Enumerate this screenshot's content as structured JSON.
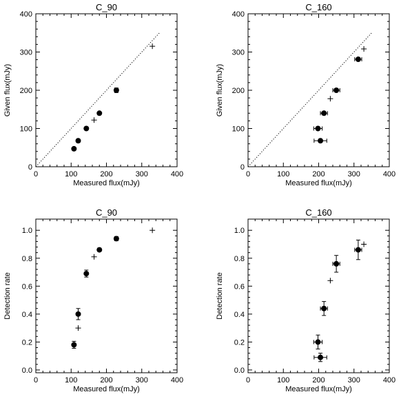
{
  "chart_data": [
    {
      "type": "scatter",
      "title": "C_90",
      "xlabel": "Measured flux(mJy)",
      "ylabel": "Given flux(mJy)",
      "xlim": [
        0,
        400
      ],
      "ylim": [
        0,
        400
      ],
      "xticks": [
        "0",
        "100",
        "200",
        "300",
        "400"
      ],
      "yticks": [
        "0",
        "100",
        "200",
        "300",
        "400"
      ],
      "reference_line": {
        "style": "dotted",
        "x": [
          0,
          350
        ],
        "y": [
          0,
          350
        ]
      },
      "series": [
        {
          "marker": "filled-circle",
          "points": [
            {
              "x": 108,
              "y": 47,
              "xerr": 3,
              "yerr": 0
            },
            {
              "x": 120,
              "y": 68,
              "xerr": 3,
              "yerr": 0
            },
            {
              "x": 143,
              "y": 100,
              "xerr": 3,
              "yerr": 0
            },
            {
              "x": 180,
              "y": 140,
              "xerr": 3,
              "yerr": 0
            },
            {
              "x": 228,
              "y": 200,
              "xerr": 4,
              "yerr": 6
            }
          ]
        },
        {
          "marker": "plus",
          "points": [
            {
              "x": 165,
              "y": 122
            },
            {
              "x": 330,
              "y": 315
            }
          ]
        }
      ]
    },
    {
      "type": "scatter",
      "title": "C_160",
      "xlabel": "Measured flux(mJy)",
      "ylabel": "Given flux(mJy)",
      "xlim": [
        0,
        400
      ],
      "ylim": [
        0,
        400
      ],
      "xticks": [
        "0",
        "100",
        "200",
        "300",
        "400"
      ],
      "yticks": [
        "0",
        "100",
        "200",
        "300",
        "400"
      ],
      "reference_line": {
        "style": "dotted",
        "x": [
          0,
          350
        ],
        "y": [
          0,
          350
        ]
      },
      "series": [
        {
          "marker": "filled-circle",
          "points": [
            {
              "x": 205,
              "y": 68,
              "xerr": 18,
              "yerr": 0
            },
            {
              "x": 198,
              "y": 100,
              "xerr": 12,
              "yerr": 0
            },
            {
              "x": 215,
              "y": 140,
              "xerr": 10,
              "yerr": 0
            },
            {
              "x": 250,
              "y": 200,
              "xerr": 10,
              "yerr": 0
            },
            {
              "x": 312,
              "y": 281,
              "xerr": 10,
              "yerr": 0
            }
          ]
        },
        {
          "marker": "plus",
          "points": [
            {
              "x": 233,
              "y": 178
            },
            {
              "x": 328,
              "y": 308
            }
          ]
        }
      ]
    },
    {
      "type": "scatter",
      "title": "C_90",
      "xlabel": "Measured flux(mJy)",
      "ylabel": "Detection rate",
      "xlim": [
        0,
        400
      ],
      "ylim": [
        -0.02,
        1.08
      ],
      "xticks": [
        "0",
        "100",
        "200",
        "300",
        "400"
      ],
      "yticks": [
        "0.0",
        "0.2",
        "0.4",
        "0.6",
        "0.8",
        "1.0"
      ],
      "series": [
        {
          "marker": "filled-circle",
          "points": [
            {
              "x": 108,
              "y": 0.18,
              "xerr": 3,
              "yerr": 0.025
            },
            {
              "x": 120,
              "y": 0.4,
              "xerr": 3,
              "yerr": 0.04
            },
            {
              "x": 143,
              "y": 0.69,
              "xerr": 3,
              "yerr": 0.025
            },
            {
              "x": 180,
              "y": 0.86,
              "xerr": 3,
              "yerr": 0.012
            },
            {
              "x": 228,
              "y": 0.94,
              "xerr": 4,
              "yerr": 0.015
            }
          ]
        },
        {
          "marker": "plus",
          "points": [
            {
              "x": 120,
              "y": 0.3
            },
            {
              "x": 165,
              "y": 0.81
            },
            {
              "x": 330,
              "y": 1.0
            }
          ]
        }
      ]
    },
    {
      "type": "scatter",
      "title": "C_160",
      "xlabel": "Measured flux(mJy)",
      "ylabel": "Detection rate",
      "xlim": [
        0,
        400
      ],
      "ylim": [
        -0.02,
        1.08
      ],
      "xticks": [
        "0",
        "100",
        "200",
        "300",
        "400"
      ],
      "yticks": [
        "0.0",
        "0.2",
        "0.4",
        "0.6",
        "0.8",
        "1.0"
      ],
      "series": [
        {
          "marker": "filled-circle",
          "points": [
            {
              "x": 205,
              "y": 0.09,
              "xerr": 18,
              "yerr": 0.03
            },
            {
              "x": 198,
              "y": 0.2,
              "xerr": 12,
              "yerr": 0.05
            },
            {
              "x": 215,
              "y": 0.44,
              "xerr": 10,
              "yerr": 0.05
            },
            {
              "x": 250,
              "y": 0.76,
              "xerr": 10,
              "yerr": 0.06
            },
            {
              "x": 312,
              "y": 0.86,
              "xerr": 10,
              "yerr": 0.07
            }
          ]
        },
        {
          "marker": "plus",
          "points": [
            {
              "x": 233,
              "y": 0.64
            },
            {
              "x": 328,
              "y": 0.9
            }
          ]
        }
      ]
    }
  ]
}
